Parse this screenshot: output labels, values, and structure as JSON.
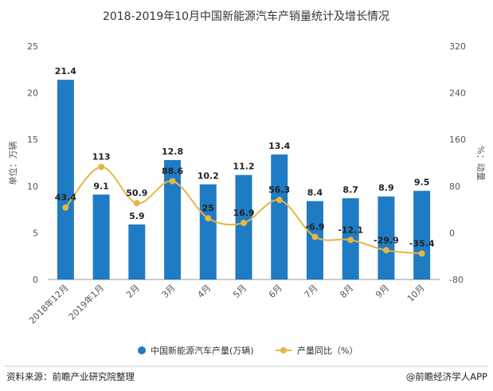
{
  "chart_data": {
    "type": "bar",
    "title": "2018-2019年10月中国新能源汽车产销量统计及增长情况",
    "categories": [
      "2018年12月",
      "2019年1月",
      "2月",
      "3月",
      "4月",
      "5月",
      "6月",
      "7月",
      "8月",
      "9月",
      "10月"
    ],
    "series": [
      {
        "name": "中国新能源汽车产量(万辆)",
        "type": "bar",
        "axis": "left",
        "color": "#1f7bc4",
        "values": [
          21.4,
          9.1,
          5.9,
          12.8,
          10.2,
          11.2,
          13.4,
          8.4,
          8.7,
          8.9,
          9.5
        ],
        "labels": [
          "21.4",
          "9.1",
          "5.9",
          "12.8",
          "10.2",
          "11.2",
          "13.4",
          "8.4",
          "8.7",
          "8.9",
          "9.5"
        ]
      },
      {
        "name": "产量同比（%）",
        "type": "line",
        "axis": "right",
        "color": "#e8b544",
        "values": [
          43.4,
          113,
          50.9,
          88.6,
          25,
          16.9,
          56.3,
          -6.9,
          -12.1,
          -29.9,
          -35.4
        ],
        "labels": [
          "43.4",
          "113",
          "50.9",
          "88.6",
          "25",
          "16.9",
          "56.3",
          "-6.9",
          "-12.1",
          "-29.9",
          "-35.4"
        ]
      }
    ],
    "ylabel": "单位：万辆",
    "ylim": [
      0,
      25
    ],
    "yticks": [
      "0",
      "5",
      "10",
      "15",
      "20",
      "25"
    ],
    "y2label": "%：动量",
    "y2lim": [
      -80,
      320
    ],
    "y2ticks": [
      "-80",
      "0",
      "80",
      "160",
      "240",
      "320"
    ],
    "grid": false,
    "legend_position": "bottom"
  },
  "footer": {
    "source": "资料来源：前瞻产业研究院整理",
    "brand": "@前瞻经济学人APP"
  }
}
